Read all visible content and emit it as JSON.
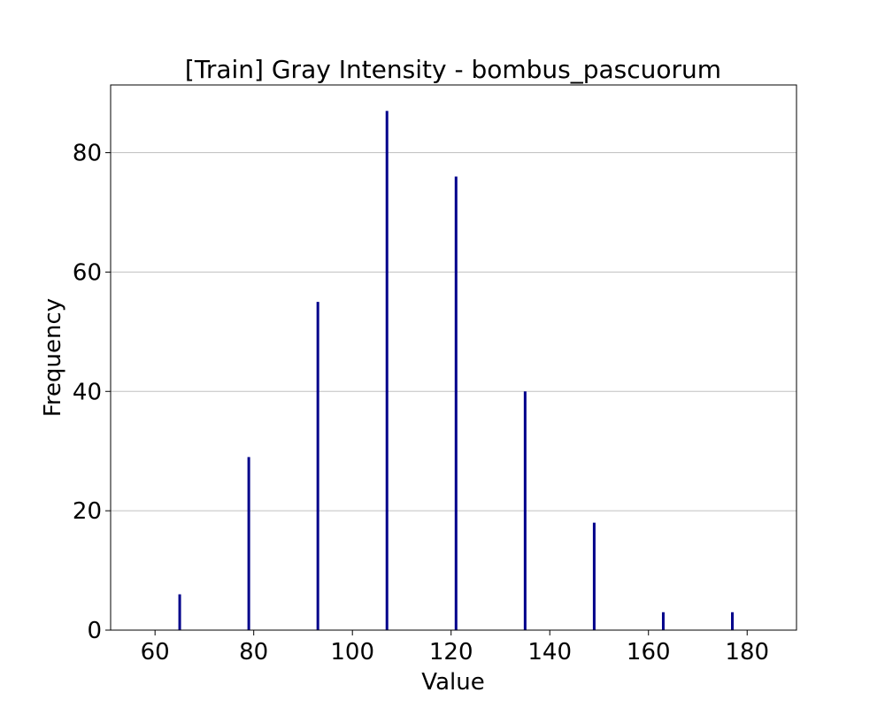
{
  "chart_data": {
    "type": "bar",
    "title": "[Train] Gray Intensity - bombus_pascuorum",
    "xlabel": "Value",
    "ylabel": "Frequency",
    "xlim": [
      51,
      190
    ],
    "ylim": [
      0,
      91.35
    ],
    "xticks": [
      60,
      80,
      100,
      120,
      140,
      160,
      180
    ],
    "yticks": [
      0,
      20,
      40,
      60,
      80
    ],
    "grid": "y",
    "bar_color": "#00008b",
    "bars": [
      {
        "x": 65,
        "value": 6
      },
      {
        "x": 79,
        "value": 29
      },
      {
        "x": 93,
        "value": 55
      },
      {
        "x": 107,
        "value": 87
      },
      {
        "x": 121,
        "value": 76
      },
      {
        "x": 135,
        "value": 40
      },
      {
        "x": 149,
        "value": 18
      },
      {
        "x": 163,
        "value": 3
      },
      {
        "x": 177,
        "value": 3
      }
    ]
  }
}
